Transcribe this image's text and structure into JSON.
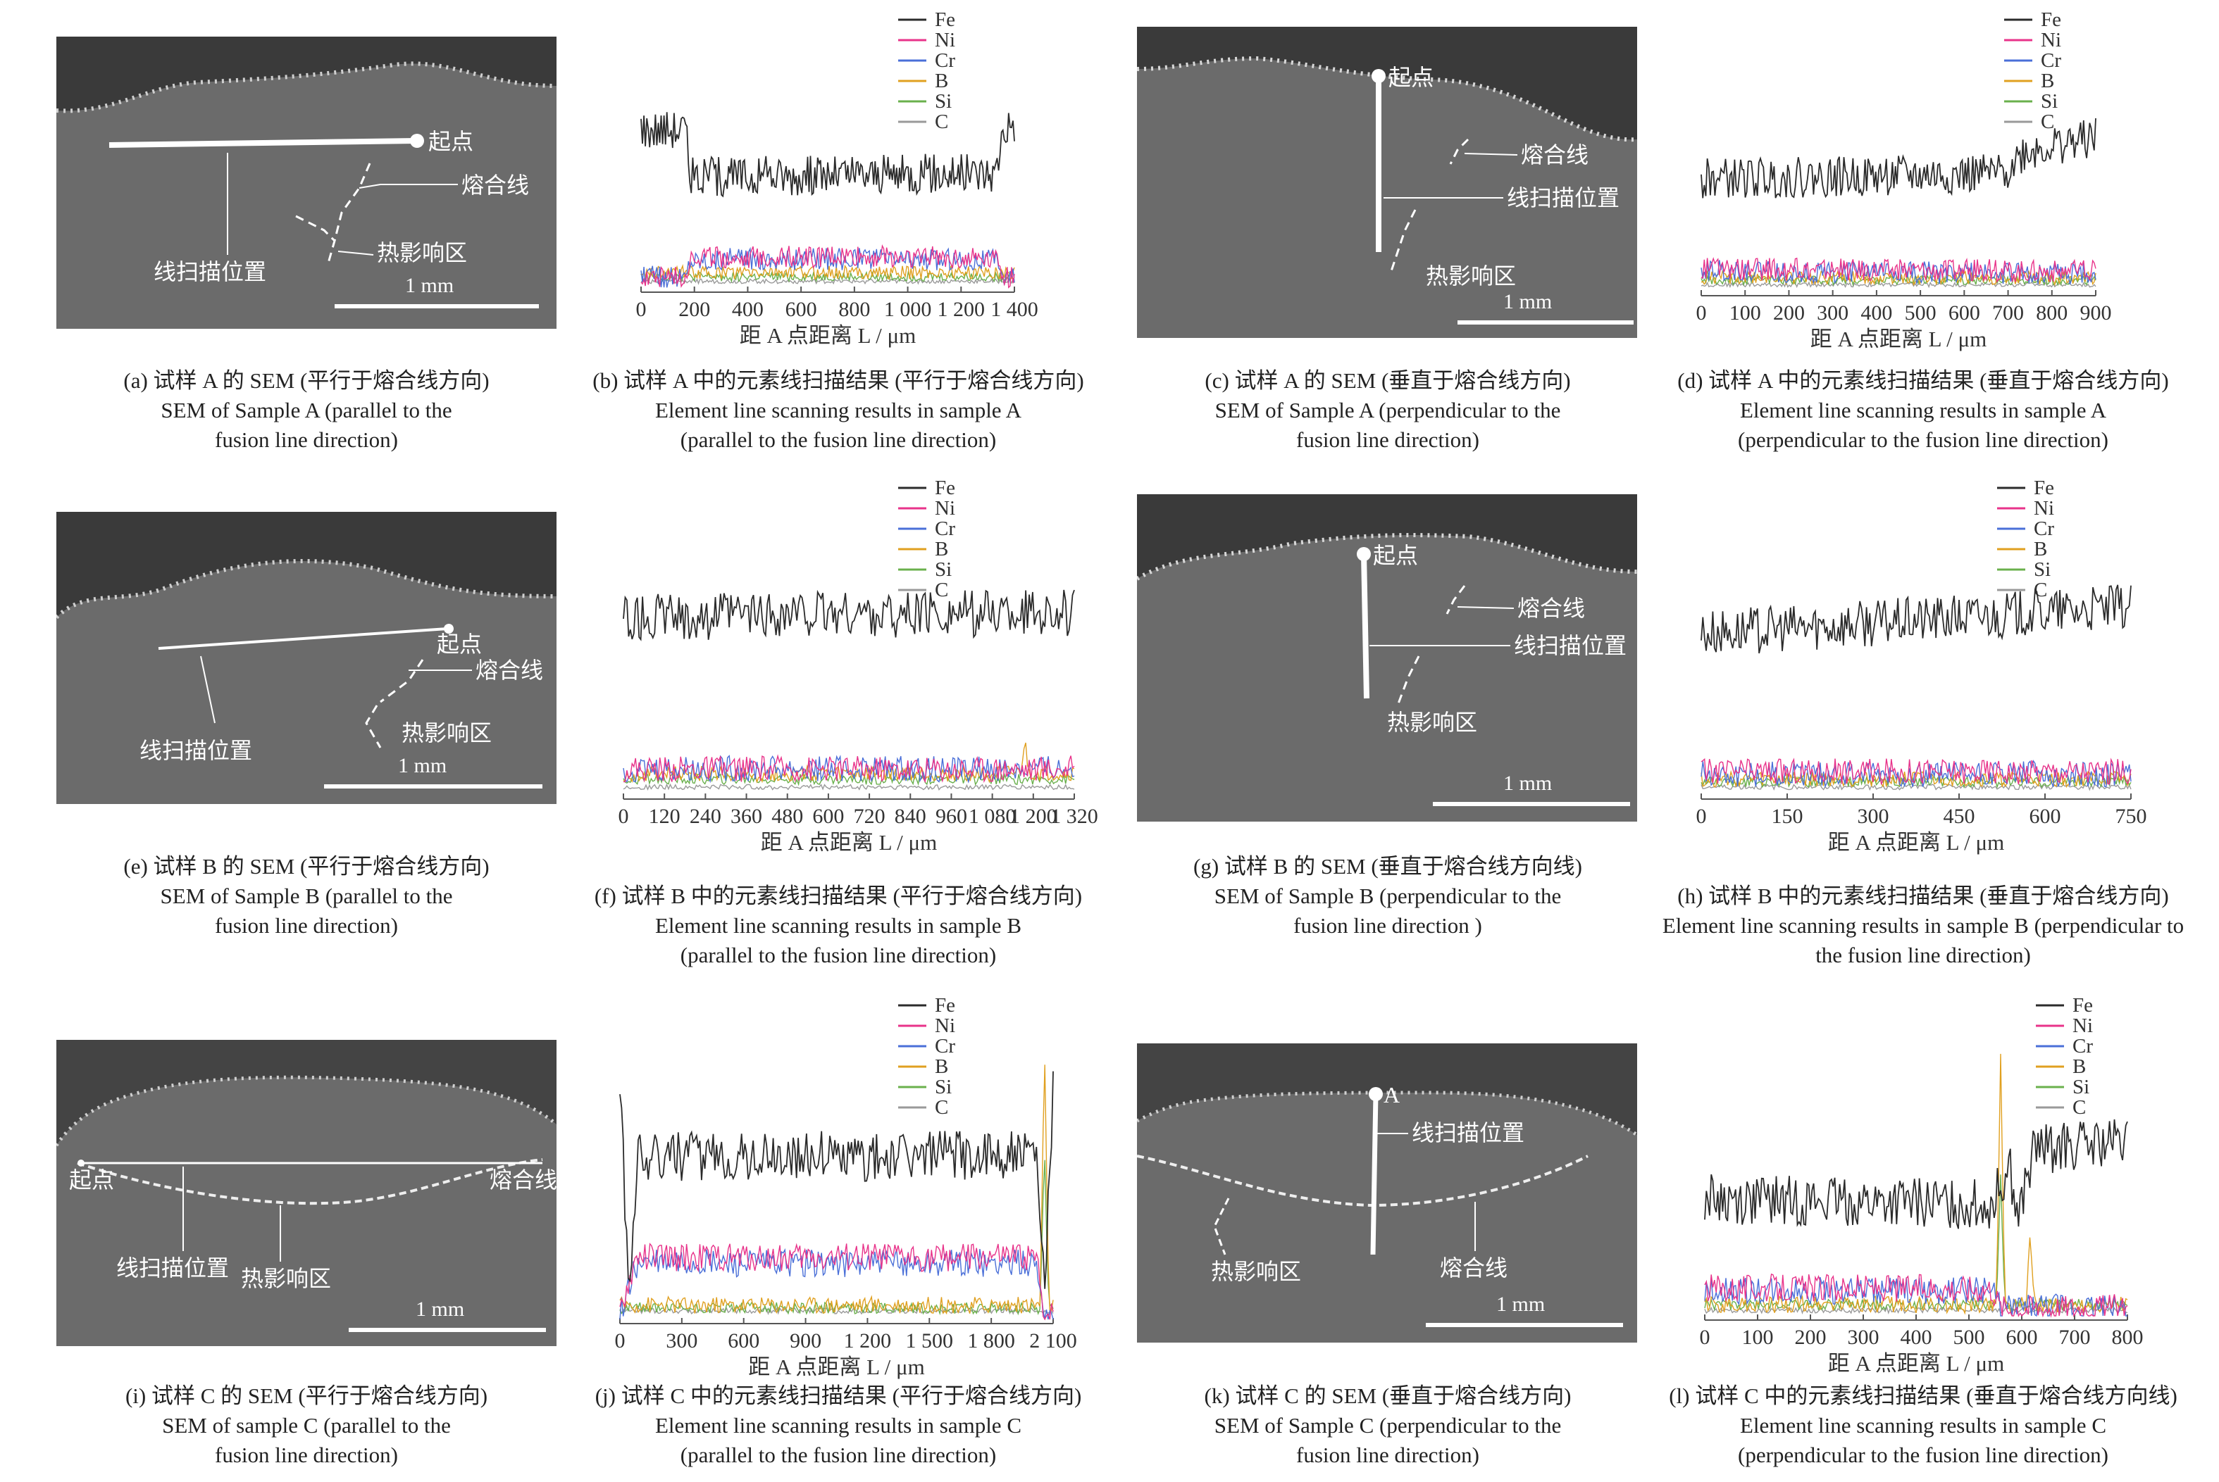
{
  "colors": {
    "Fe": "#2b2b2b",
    "Ni": "#e8338a",
    "Cr": "#4a6fd8",
    "B": "#e0a020",
    "Si": "#6ab04c",
    "C": "#9a9a9a",
    "sem_matrix": "#6b6b6b",
    "sem_rough": "#3a3a3a",
    "sem_line": "#ffffff"
  },
  "legend_labels": [
    "Fe",
    "Ni",
    "Cr",
    "B",
    "Si",
    "C"
  ],
  "xlabel": "距 A 点距离 L / μm",
  "sem_panels": [
    {
      "id": "a",
      "labels": {
        "start": "起点",
        "fusion": "熔合线",
        "scan": "线扫描位置",
        "haz": "热影响区",
        "scale": "1 mm"
      },
      "caption": [
        "(a) 试样 A 的 SEM (平行于熔合线方向)",
        "SEM of Sample A (parallel to the",
        "fusion line direction)"
      ]
    },
    {
      "id": "c",
      "labels": {
        "start": "起点",
        "fusion": "熔合线",
        "scan": "线扫描位置",
        "haz": "热影响区",
        "scale": "1 mm"
      },
      "caption": [
        "(c) 试样 A 的 SEM (垂直于熔合线方向)",
        "SEM of Sample A (perpendicular to the",
        "fusion line direction)"
      ]
    },
    {
      "id": "e",
      "labels": {
        "start": "起点",
        "fusion": "熔合线",
        "scan": "线扫描位置",
        "haz": "热影响区",
        "scale": "1 mm"
      },
      "caption": [
        "(e) 试样 B 的 SEM (平行于熔合线方向)",
        "SEM of Sample B (parallel to the",
        "fusion line direction)"
      ]
    },
    {
      "id": "g",
      "labels": {
        "start": "起点",
        "fusion": "熔合线",
        "scan": "线扫描位置",
        "haz": "热影响区",
        "scale": "1 mm"
      },
      "caption": [
        "(g) 试样 B 的 SEM (垂直于熔合线方向线)",
        "SEM of Sample B (perpendicular to the",
        "fusion line direction )"
      ]
    },
    {
      "id": "i",
      "labels": {
        "start": "起点",
        "fusion": "熔合线",
        "scan": "线扫描位置",
        "haz": "热影响区",
        "scale": "1 mm"
      },
      "caption": [
        "(i) 试样 C 的 SEM (平行于熔合线方向)",
        "SEM of sample C (parallel to the",
        "fusion line direction)"
      ]
    },
    {
      "id": "k",
      "labels": {
        "start": "A",
        "fusion": "熔合线",
        "scan": "线扫描位置",
        "haz": "热影响区",
        "scale": "1 mm"
      },
      "caption": [
        "(k) 试样 C 的 SEM (垂直于熔合线方向)",
        "SEM of Sample C (perpendicular to the",
        "fusion line direction)"
      ]
    }
  ],
  "chart_data": [
    {
      "id": "b",
      "type": "line",
      "xlabel": "距 A 点距离 L / μm",
      "xlim": [
        0,
        1400
      ],
      "x_ticks": [
        "0",
        "200",
        "400",
        "600",
        "800",
        "1 000",
        "1 200",
        "1 400"
      ],
      "legend": [
        "Fe",
        "Ni",
        "Cr",
        "B",
        "Si",
        "C"
      ],
      "series": [
        {
          "name": "Fe",
          "profile": [
            [
              0,
              0.72
            ],
            [
              0.12,
              0.72
            ],
            [
              0.13,
              0.5
            ],
            [
              0.95,
              0.52
            ],
            [
              0.97,
              0.72
            ],
            [
              1,
              0.75
            ]
          ]
        },
        {
          "name": "Ni",
          "profile": [
            [
              0,
              0.05
            ],
            [
              0.12,
              0.05
            ],
            [
              0.13,
              0.14
            ],
            [
              0.96,
              0.14
            ],
            [
              0.97,
              0.05
            ],
            [
              1,
              0.05
            ]
          ]
        },
        {
          "name": "Cr",
          "profile": [
            [
              0,
              0.05
            ],
            [
              0.12,
              0.05
            ],
            [
              0.13,
              0.13
            ],
            [
              0.96,
              0.13
            ],
            [
              0.97,
              0.05
            ],
            [
              1,
              0.05
            ]
          ]
        },
        {
          "name": "B",
          "profile": [
            [
              0,
              0.07
            ],
            [
              1,
              0.07
            ]
          ]
        },
        {
          "name": "Si",
          "profile": [
            [
              0,
              0.05
            ],
            [
              1,
              0.05
            ]
          ]
        },
        {
          "name": "C",
          "profile": [
            [
              0,
              0.03
            ],
            [
              1,
              0.03
            ]
          ]
        }
      ],
      "caption": [
        "(b) 试样 A 中的元素线扫描结果 (平行于熔合线方向)",
        "Element line scanning results in sample A",
        "(parallel to the fusion line direction)"
      ]
    },
    {
      "id": "d",
      "type": "line",
      "xlabel": "距 A 点距离 L / μm",
      "xlim": [
        0,
        900
      ],
      "x_ticks": [
        "0",
        "100",
        "200",
        "300",
        "400",
        "500",
        "600",
        "700",
        "800",
        "900"
      ],
      "legend": [
        "Fe",
        "Ni",
        "Cr",
        "B",
        "Si",
        "C"
      ],
      "series": [
        {
          "name": "Fe",
          "profile": [
            [
              0,
              0.5
            ],
            [
              0.76,
              0.52
            ],
            [
              0.82,
              0.62
            ],
            [
              0.9,
              0.65
            ],
            [
              1,
              0.68
            ]
          ]
        },
        {
          "name": "Ni",
          "profile": [
            [
              0,
              0.1
            ],
            [
              1,
              0.09
            ]
          ]
        },
        {
          "name": "Cr",
          "profile": [
            [
              0,
              0.09
            ],
            [
              1,
              0.08
            ]
          ]
        },
        {
          "name": "B",
          "profile": [
            [
              0,
              0.06
            ],
            [
              1,
              0.06
            ]
          ]
        },
        {
          "name": "Si",
          "profile": [
            [
              0,
              0.05
            ],
            [
              1,
              0.05
            ]
          ]
        },
        {
          "name": "C",
          "profile": [
            [
              0,
              0.03
            ],
            [
              1,
              0.03
            ]
          ]
        }
      ],
      "caption": [
        "(d) 试样 A 中的元素线扫描结果 (垂直于熔合线方向)",
        "Element line scanning results in sample A",
        "(perpendicular to the fusion line direction)"
      ]
    },
    {
      "id": "f",
      "type": "line",
      "xlabel": "距 A 点距离 L / μm",
      "xlim": [
        0,
        1320
      ],
      "x_ticks": [
        "0",
        "120",
        "240",
        "360",
        "480",
        "600",
        "720",
        "840",
        "960",
        "1 080",
        "1 200",
        "1 320"
      ],
      "legend": [
        "Fe",
        "Ni",
        "Cr",
        "B",
        "Si",
        "C"
      ],
      "series": [
        {
          "name": "Fe",
          "profile": [
            [
              0,
              0.68
            ],
            [
              1,
              0.7
            ]
          ]
        },
        {
          "name": "Ni",
          "profile": [
            [
              0,
              0.1
            ],
            [
              1,
              0.1
            ]
          ]
        },
        {
          "name": "Cr",
          "profile": [
            [
              0,
              0.1
            ],
            [
              1,
              0.1
            ]
          ]
        },
        {
          "name": "B",
          "profile": [
            [
              0,
              0.08
            ],
            [
              0.88,
              0.08
            ],
            [
              0.89,
              0.2
            ],
            [
              0.9,
              0.08
            ],
            [
              1,
              0.08
            ]
          ]
        },
        {
          "name": "Si",
          "profile": [
            [
              0,
              0.06
            ],
            [
              1,
              0.06
            ]
          ]
        },
        {
          "name": "C",
          "profile": [
            [
              0,
              0.03
            ],
            [
              1,
              0.03
            ]
          ]
        }
      ],
      "caption": [
        "(f) 试样 B 中的元素线扫描结果 (平行于熔合线方向)",
        "Element line scanning results in sample B",
        "(parallel to the fusion line direction)"
      ]
    },
    {
      "id": "h",
      "type": "line",
      "xlabel": "距 A 点距离 L / μm",
      "xlim": [
        0,
        750
      ],
      "x_ticks": [
        "0",
        "150",
        "300",
        "450",
        "600",
        "750"
      ],
      "legend": [
        "Fe",
        "Ni",
        "Cr",
        "B",
        "Si",
        "C"
      ],
      "series": [
        {
          "name": "Fe",
          "profile": [
            [
              0,
              0.62
            ],
            [
              1,
              0.72
            ]
          ]
        },
        {
          "name": "Ni",
          "profile": [
            [
              0,
              0.09
            ],
            [
              1,
              0.09
            ]
          ]
        },
        {
          "name": "Cr",
          "profile": [
            [
              0,
              0.08
            ],
            [
              1,
              0.08
            ]
          ]
        },
        {
          "name": "B",
          "profile": [
            [
              0,
              0.06
            ],
            [
              1,
              0.06
            ]
          ]
        },
        {
          "name": "Si",
          "profile": [
            [
              0,
              0.05
            ],
            [
              1,
              0.05
            ]
          ]
        },
        {
          "name": "C",
          "profile": [
            [
              0,
              0.03
            ],
            [
              1,
              0.03
            ]
          ]
        }
      ],
      "caption": [
        "(h) 试样 B 中的元素线扫描结果 (垂直于熔合线方向)",
        "Element line scanning results in sample B (perpendicular to",
        "the fusion line direction)"
      ]
    },
    {
      "id": "j",
      "type": "line",
      "xlabel": "距 A 点距离 L / μm",
      "xlim": [
        0,
        2100
      ],
      "x_ticks": [
        "0",
        "300",
        "600",
        "900",
        "1 200",
        "1 500",
        "1 800",
        "2 100"
      ],
      "legend": [
        "Fe",
        "Ni",
        "Cr",
        "B",
        "Si",
        "C"
      ],
      "series": [
        {
          "name": "Fe",
          "profile": [
            [
              0,
              0.85
            ],
            [
              0.02,
              0.1
            ],
            [
              0.04,
              0.58
            ],
            [
              0.96,
              0.58
            ],
            [
              0.98,
              0.1
            ],
            [
              1,
              0.8
            ]
          ]
        },
        {
          "name": "Ni",
          "profile": [
            [
              0,
              0.02
            ],
            [
              0.04,
              0.22
            ],
            [
              0.96,
              0.22
            ],
            [
              0.98,
              0.02
            ],
            [
              1,
              0.02
            ]
          ]
        },
        {
          "name": "Cr",
          "profile": [
            [
              0,
              0.02
            ],
            [
              0.04,
              0.2
            ],
            [
              0.96,
              0.2
            ],
            [
              0.98,
              0.02
            ],
            [
              1,
              0.02
            ]
          ]
        },
        {
          "name": "B",
          "profile": [
            [
              0,
              0.05
            ],
            [
              0.97,
              0.05
            ],
            [
              0.98,
              0.95
            ],
            [
              0.99,
              0.05
            ],
            [
              1,
              0.05
            ]
          ]
        },
        {
          "name": "Si",
          "profile": [
            [
              0,
              0.04
            ],
            [
              0.97,
              0.04
            ],
            [
              0.98,
              0.6
            ],
            [
              0.99,
              0.04
            ],
            [
              1,
              0.04
            ]
          ]
        },
        {
          "name": "C",
          "profile": [
            [
              0,
              0.03
            ],
            [
              1,
              0.03
            ]
          ]
        }
      ],
      "caption": [
        "(j) 试样 C 中的元素线扫描结果 (平行于熔合线方向)",
        "Element line scanning results in sample C",
        "(parallel to the fusion line direction)"
      ]
    },
    {
      "id": "l",
      "type": "line",
      "xlabel": "距 A 点距离 L / μm",
      "xlim": [
        0,
        800
      ],
      "x_ticks": [
        "0",
        "100",
        "200",
        "300",
        "400",
        "500",
        "600",
        "700",
        "800"
      ],
      "legend": [
        "Fe",
        "Ni",
        "Cr",
        "B",
        "Si",
        "C"
      ],
      "series": [
        {
          "name": "Fe",
          "profile": [
            [
              0,
              0.42
            ],
            [
              0.68,
              0.4
            ],
            [
              0.72,
              0.55
            ],
            [
              0.74,
              0.35
            ],
            [
              0.78,
              0.6
            ],
            [
              1,
              0.62
            ]
          ]
        },
        {
          "name": "Ni",
          "profile": [
            [
              0,
              0.1
            ],
            [
              0.68,
              0.1
            ],
            [
              0.7,
              0.03
            ],
            [
              1,
              0.03
            ]
          ]
        },
        {
          "name": "Cr",
          "profile": [
            [
              0,
              0.09
            ],
            [
              0.68,
              0.09
            ],
            [
              0.7,
              0.03
            ],
            [
              1,
              0.03
            ]
          ]
        },
        {
          "name": "B",
          "profile": [
            [
              0,
              0.04
            ],
            [
              0.69,
              0.04
            ],
            [
              0.7,
              0.95
            ],
            [
              0.71,
              0.04
            ],
            [
              0.76,
              0.04
            ],
            [
              0.77,
              0.3
            ],
            [
              0.78,
              0.04
            ],
            [
              1,
              0.04
            ]
          ]
        },
        {
          "name": "Si",
          "profile": [
            [
              0,
              0.04
            ],
            [
              0.69,
              0.04
            ],
            [
              0.7,
              0.5
            ],
            [
              0.71,
              0.04
            ],
            [
              1,
              0.04
            ]
          ]
        },
        {
          "name": "C",
          "profile": [
            [
              0,
              0.02
            ],
            [
              1,
              0.02
            ]
          ]
        }
      ],
      "caption": [
        "(l) 试样 C 中的元素线扫描结果 (垂直于熔合线方向线)",
        "Element line scanning results in sample C",
        "(perpendicular to the fusion line direction)"
      ]
    }
  ]
}
